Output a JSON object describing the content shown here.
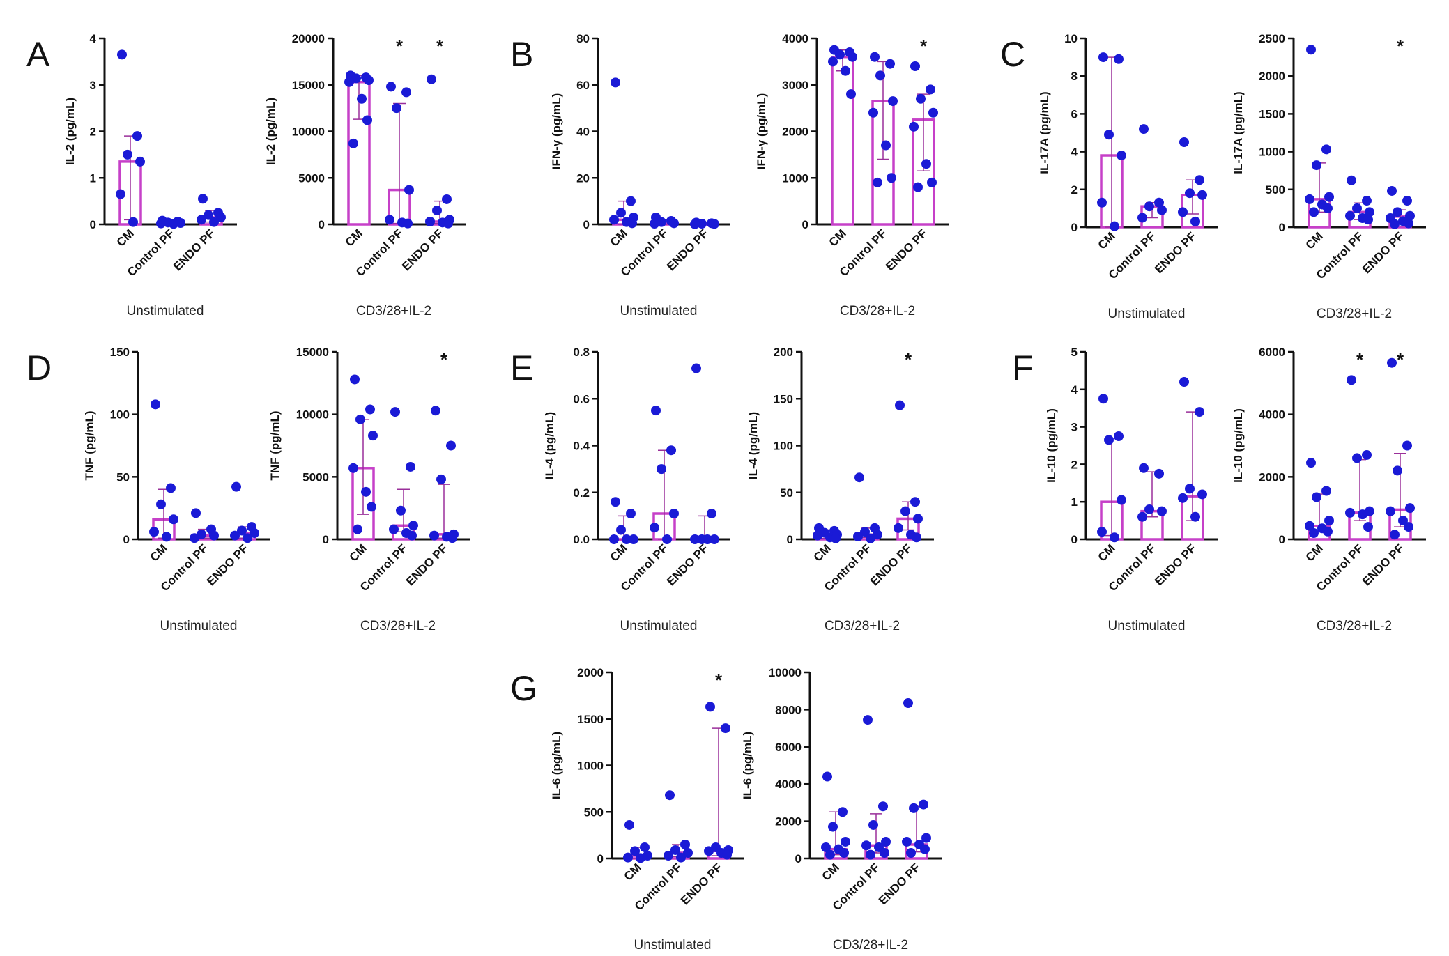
{
  "colors": {
    "bar": "#c640c8",
    "point": "#1a1ad6",
    "axis": "#111111",
    "error": "#9a2f9a"
  },
  "chart_data": [
    {
      "panel": "A",
      "type": "bar",
      "ylabel": "IL-2 (pg/mL)",
      "xlabel": "Unstimulated",
      "ylim": [
        0,
        4
      ],
      "yticks": [
        0,
        1,
        2,
        3,
        4
      ],
      "categories": [
        "CM",
        "Control PF",
        "ENDO PF"
      ],
      "values": [
        1.35,
        0.05,
        0.15
      ],
      "err_low": [
        0.1,
        0.0,
        0.05
      ],
      "err_high": [
        1.9,
        0.1,
        0.3
      ],
      "sig": [
        false,
        false,
        false
      ],
      "points": [
        [
          3.65,
          1.9,
          1.5,
          1.35,
          0.65,
          0.05
        ],
        [
          0.08,
          0.06,
          0.04,
          0.03,
          0.02,
          0.01
        ],
        [
          0.55,
          0.25,
          0.2,
          0.15,
          0.1,
          0.05
        ]
      ]
    },
    {
      "panel": "",
      "type": "bar",
      "ylabel": "IL-2 (pg/mL)",
      "xlabel": "CD3/28+IL-2",
      "ylim": [
        0,
        20000
      ],
      "yticks": [
        0,
        5000,
        10000,
        15000,
        20000
      ],
      "categories": [
        "CM",
        "Control PF",
        "ENDO PF"
      ],
      "values": [
        15300,
        3700,
        300
      ],
      "err_low": [
        11300,
        100,
        100
      ],
      "err_high": [
        16000,
        13000,
        2500
      ],
      "sig": [
        false,
        true,
        true
      ],
      "points": [
        [
          16000,
          15800,
          15700,
          15500,
          15300,
          13500,
          11200,
          8700
        ],
        [
          14800,
          14200,
          12500,
          3700,
          500,
          200,
          100
        ],
        [
          15600,
          2700,
          1500,
          500,
          300,
          200,
          100
        ]
      ]
    },
    {
      "panel": "B",
      "type": "bar",
      "ylabel": "IFN-γ (pg/mL)",
      "xlabel": "Unstimulated",
      "ylim": [
        0,
        80
      ],
      "yticks": [
        0,
        20,
        40,
        60,
        80
      ],
      "categories": [
        "CM",
        "Control PF",
        "ENDO PF"
      ],
      "values": [
        2,
        0.5,
        0.3
      ],
      "err_low": [
        0,
        0,
        0
      ],
      "err_high": [
        10,
        2,
        1
      ],
      "sig": [
        false,
        false,
        false
      ],
      "points": [
        [
          61,
          10,
          5,
          3,
          2,
          1,
          0.5
        ],
        [
          3,
          1.5,
          1,
          0.5,
          0.3
        ],
        [
          0.8,
          0.5,
          0.3,
          0.2,
          0.1
        ]
      ]
    },
    {
      "panel": "",
      "type": "bar",
      "ylabel": "IFN-γ (pg/mL)",
      "xlabel": "CD3/28+IL-2",
      "ylim": [
        0,
        4000
      ],
      "yticks": [
        0,
        1000,
        2000,
        3000,
        4000
      ],
      "categories": [
        "CM",
        "Control PF",
        "ENDO PF"
      ],
      "values": [
        3600,
        2650,
        2250
      ],
      "err_low": [
        3300,
        1400,
        1150
      ],
      "err_high": [
        3750,
        3500,
        2800
      ],
      "sig": [
        false,
        false,
        true
      ],
      "points": [
        [
          3750,
          3700,
          3650,
          3600,
          3500,
          3300,
          2800
        ],
        [
          3600,
          3450,
          3200,
          2650,
          2400,
          1700,
          1000,
          900
        ],
        [
          3400,
          2900,
          2700,
          2400,
          2100,
          1300,
          900,
          800
        ]
      ]
    },
    {
      "panel": "C",
      "type": "bar",
      "ylabel": "IL-17A (pg/mL)",
      "xlabel": "Unstimulated",
      "ylim": [
        0,
        10
      ],
      "yticks": [
        0,
        2,
        4,
        6,
        8,
        10
      ],
      "categories": [
        "CM",
        "Control PF",
        "ENDO PF"
      ],
      "values": [
        3.8,
        1.1,
        1.7
      ],
      "err_low": [
        0,
        0.5,
        0.7
      ],
      "err_high": [
        9,
        1.3,
        2.5
      ],
      "sig": [
        false,
        false,
        false
      ],
      "points": [
        [
          9,
          8.9,
          4.9,
          3.8,
          1.3,
          0.05
        ],
        [
          5.2,
          1.3,
          1.1,
          0.9,
          0.5
        ],
        [
          4.5,
          2.5,
          1.8,
          1.7,
          0.8,
          0.3
        ]
      ]
    },
    {
      "panel": "",
      "type": "bar",
      "ylabel": "IL-17A (pg/mL)",
      "xlabel": "CD3/28+IL-2",
      "ylim": [
        0,
        2500
      ],
      "yticks": [
        0,
        500,
        1000,
        1500,
        2000,
        2500
      ],
      "categories": [
        "CM",
        "Control PF",
        "ENDO PF"
      ],
      "values": [
        370,
        200,
        140
      ],
      "err_low": [
        200,
        100,
        60
      ],
      "err_high": [
        850,
        320,
        230
      ],
      "sig": [
        false,
        false,
        true
      ],
      "points": [
        [
          2350,
          1030,
          820,
          400,
          370,
          300,
          250,
          200
        ],
        [
          620,
          350,
          250,
          200,
          150,
          120,
          100
        ],
        [
          480,
          350,
          200,
          150,
          120,
          80,
          50,
          40
        ]
      ]
    },
    {
      "panel": "D",
      "type": "bar",
      "ylabel": "TNF (pg/mL)",
      "xlabel": "Unstimulated",
      "ylim": [
        0,
        150
      ],
      "yticks": [
        0,
        50,
        100,
        150
      ],
      "categories": [
        "CM",
        "Control PF",
        "ENDO PF"
      ],
      "values": [
        16,
        3,
        5
      ],
      "err_low": [
        1,
        1,
        1
      ],
      "err_high": [
        40,
        8,
        10
      ],
      "sig": [
        false,
        false,
        false
      ],
      "points": [
        [
          108,
          41,
          28,
          16,
          6,
          2
        ],
        [
          21,
          8,
          4,
          3,
          1
        ],
        [
          42,
          10,
          7,
          5,
          3,
          1
        ]
      ]
    },
    {
      "panel": "",
      "type": "bar",
      "ylabel": "TNF (pg/mL)",
      "xlabel": "CD3/28+IL-2",
      "ylim": [
        0,
        15000
      ],
      "yticks": [
        0,
        5000,
        10000,
        15000
      ],
      "categories": [
        "CM",
        "Control PF",
        "ENDO PF"
      ],
      "values": [
        5700,
        1100,
        400
      ],
      "err_low": [
        2000,
        600,
        100
      ],
      "err_high": [
        9600,
        4000,
        4400
      ],
      "sig": [
        false,
        false,
        true
      ],
      "points": [
        [
          12800,
          10400,
          9600,
          8300,
          5700,
          3800,
          2600,
          800
        ],
        [
          10200,
          5800,
          2300,
          1100,
          800,
          500,
          300
        ],
        [
          10300,
          7500,
          4800,
          400,
          300,
          200,
          100
        ]
      ]
    },
    {
      "panel": "E",
      "type": "bar",
      "ylabel": "IL-4 (pg/mL)",
      "xlabel": "Unstimulated",
      "ylim": [
        0,
        0.8
      ],
      "yticks": [
        0.0,
        0.2,
        0.4,
        0.6,
        0.8
      ],
      "categories": [
        "CM",
        "Control PF",
        "ENDO PF"
      ],
      "values": [
        0,
        0.11,
        0
      ],
      "err_low": [
        0,
        0,
        0
      ],
      "err_high": [
        0.1,
        0.38,
        0.1
      ],
      "sig": [
        false,
        false,
        false
      ],
      "points": [
        [
          0.16,
          0.11,
          0.04,
          0.0,
          0.0,
          0.0
        ],
        [
          0.55,
          0.38,
          0.3,
          0.11,
          0.05,
          0.0
        ],
        [
          0.73,
          0.11,
          0.0,
          0.0,
          0.0,
          0.0
        ]
      ]
    },
    {
      "panel": "",
      "type": "bar",
      "ylabel": "IL-4 (pg/mL)",
      "xlabel": "CD3/28+IL-2",
      "ylim": [
        0,
        200
      ],
      "yticks": [
        0,
        50,
        100,
        150,
        200
      ],
      "categories": [
        "CM",
        "Control PF",
        "ENDO PF"
      ],
      "values": [
        4,
        5,
        22
      ],
      "err_low": [
        1,
        2,
        10
      ],
      "err_high": [
        10,
        12,
        40
      ],
      "sig": [
        false,
        false,
        true
      ],
      "points": [
        [
          12,
          9,
          7,
          5,
          4,
          2,
          1
        ],
        [
          66,
          12,
          8,
          5,
          3,
          1
        ],
        [
          143,
          40,
          30,
          22,
          12,
          5,
          2
        ]
      ]
    },
    {
      "panel": "F",
      "type": "bar",
      "ylabel": "IL-10 (pg/mL)",
      "xlabel": "Unstimulated",
      "ylim": [
        0,
        5
      ],
      "yticks": [
        0,
        1,
        2,
        3,
        4,
        5
      ],
      "categories": [
        "CM",
        "Control PF",
        "ENDO PF"
      ],
      "values": [
        1.0,
        0.75,
        1.15
      ],
      "err_low": [
        0.1,
        0.6,
        0.5
      ],
      "err_high": [
        2.7,
        1.8,
        3.4
      ],
      "sig": [
        false,
        false,
        false
      ],
      "points": [
        [
          3.75,
          2.75,
          2.65,
          1.05,
          0.2,
          0.05
        ],
        [
          1.9,
          1.75,
          0.8,
          0.75,
          0.6
        ],
        [
          4.2,
          3.4,
          1.35,
          1.2,
          1.1,
          0.6
        ]
      ]
    },
    {
      "panel": "",
      "type": "bar",
      "ylabel": "IL-10 (pg/mL)",
      "xlabel": "CD3/28+IL-2",
      "ylim": [
        0,
        6000
      ],
      "yticks": [
        0,
        2000,
        4000,
        6000
      ],
      "categories": [
        "CM",
        "Control PF",
        "ENDO PF"
      ],
      "values": [
        430,
        850,
        950
      ],
      "err_low": [
        250,
        600,
        400
      ],
      "err_high": [
        1450,
        2550,
        2750
      ],
      "sig": [
        false,
        true,
        true
      ],
      "points": [
        [
          2450,
          1550,
          1350,
          600,
          430,
          350,
          250,
          200
        ],
        [
          5100,
          2700,
          2600,
          900,
          850,
          800,
          400
        ],
        [
          5650,
          3000,
          2200,
          1000,
          900,
          600,
          400,
          150
        ]
      ]
    },
    {
      "panel": "G",
      "type": "bar",
      "ylabel": "IL-6 (pg/mL)",
      "xlabel": "Unstimulated",
      "ylim": [
        0,
        2000
      ],
      "yticks": [
        0,
        500,
        1000,
        1500,
        2000
      ],
      "categories": [
        "CM",
        "Control PF",
        "ENDO PF"
      ],
      "values": [
        30,
        60,
        80
      ],
      "err_low": [
        0,
        20,
        30
      ],
      "err_high": [
        120,
        150,
        1400
      ],
      "sig": [
        false,
        false,
        true
      ],
      "points": [
        [
          360,
          120,
          80,
          30,
          10,
          5
        ],
        [
          680,
          150,
          90,
          60,
          30,
          10
        ],
        [
          1630,
          1400,
          120,
          90,
          80,
          60,
          40
        ]
      ]
    },
    {
      "panel": "",
      "type": "bar",
      "ylabel": "IL-6 (pg/mL)",
      "xlabel": "CD3/28+IL-2",
      "ylim": [
        0,
        10000
      ],
      "yticks": [
        0,
        2000,
        4000,
        6000,
        8000,
        10000
      ],
      "categories": [
        "CM",
        "Control PF",
        "ENDO PF"
      ],
      "values": [
        500,
        700,
        750
      ],
      "err_low": [
        200,
        300,
        350
      ],
      "err_high": [
        2500,
        2400,
        2800
      ],
      "sig": [
        false,
        false,
        false
      ],
      "points": [
        [
          4400,
          2500,
          1700,
          900,
          600,
          500,
          300,
          200
        ],
        [
          7450,
          2800,
          1800,
          900,
          700,
          600,
          300,
          200
        ],
        [
          8350,
          2900,
          2700,
          1100,
          900,
          750,
          500,
          300
        ]
      ]
    }
  ]
}
